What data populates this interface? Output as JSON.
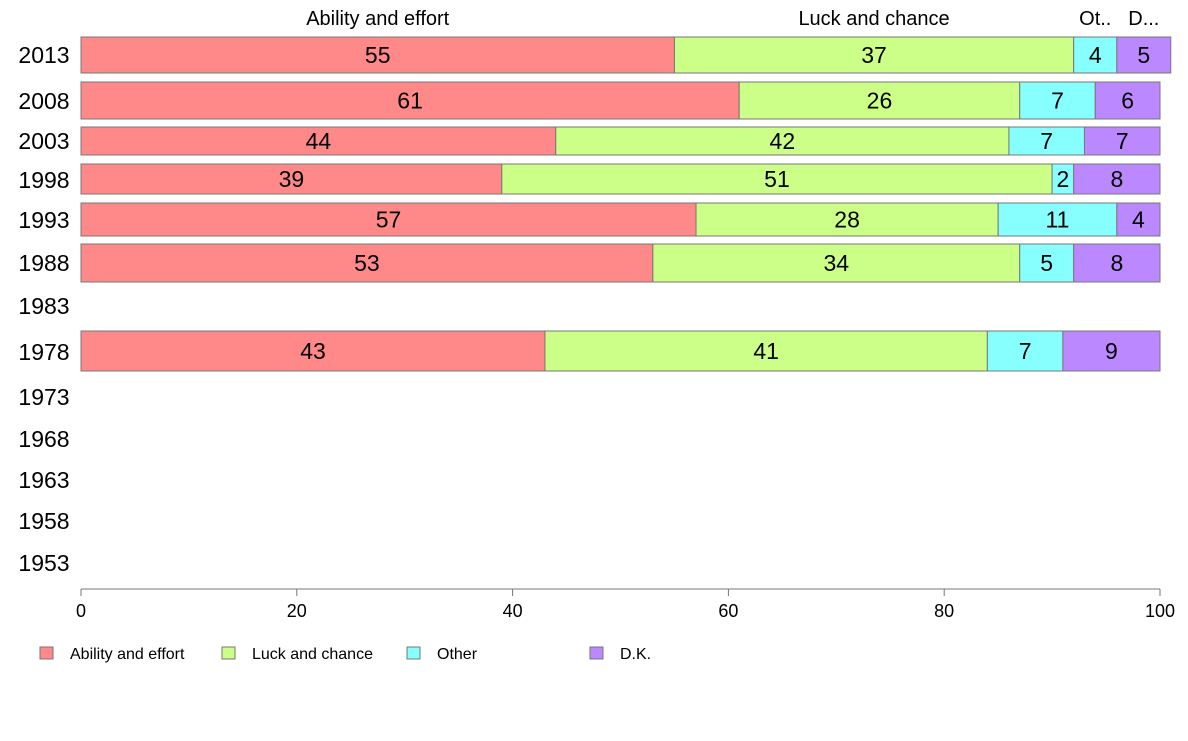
{
  "chart_data": {
    "type": "bar",
    "orientation": "horizontal",
    "stacked": true,
    "categories": [
      "2013",
      "2008",
      "2003",
      "1998",
      "1993",
      "1988",
      "1983",
      "1978",
      "1973",
      "1968",
      "1963",
      "1958",
      "1953"
    ],
    "series": [
      {
        "name": "Ability and effort",
        "color": "#ff8888",
        "values": [
          55,
          61,
          44,
          39,
          57,
          53,
          null,
          43,
          null,
          null,
          null,
          null,
          null
        ]
      },
      {
        "name": "Luck and chance",
        "color": "#ccff88",
        "values": [
          37,
          26,
          42,
          51,
          28,
          34,
          null,
          41,
          null,
          null,
          null,
          null,
          null
        ]
      },
      {
        "name": "Other",
        "color": "#88ffff",
        "values": [
          4,
          7,
          7,
          2,
          11,
          5,
          null,
          7,
          null,
          null,
          null,
          null,
          null
        ]
      },
      {
        "name": "D.K.",
        "color": "#bb88ff",
        "values": [
          5,
          6,
          7,
          8,
          4,
          8,
          null,
          9,
          null,
          null,
          null,
          null,
          null
        ]
      }
    ],
    "top_labels": [
      "Ability and effort",
      "Luck and chance",
      "Ot..",
      "D..."
    ],
    "xlim": [
      0,
      100
    ],
    "xticks": [
      "0",
      "20",
      "40",
      "60",
      "80",
      "100"
    ],
    "xlabel": "",
    "ylabel": "",
    "grid": false,
    "legend_position": "bottom-left"
  }
}
